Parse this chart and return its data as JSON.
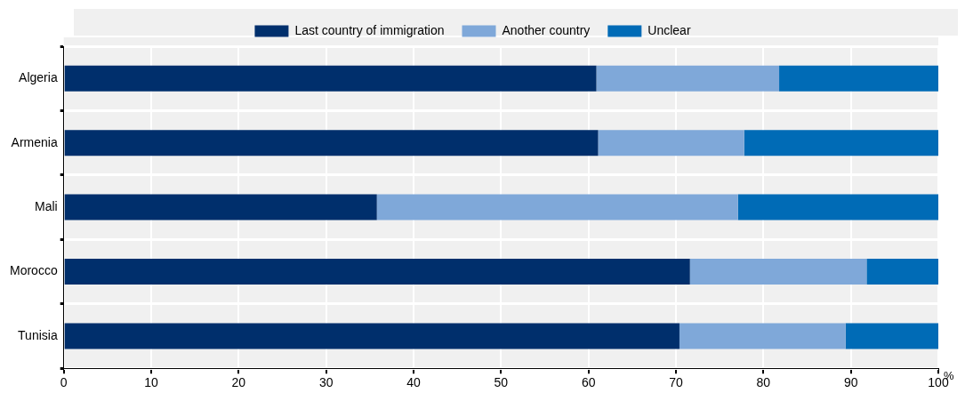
{
  "chart_data": {
    "type": "bar",
    "orientation": "horizontal",
    "stacked": true,
    "categories": [
      "Algeria",
      "Armenia",
      "Mali",
      "Morocco",
      "Tunisia"
    ],
    "series": [
      {
        "name": "Last country of immigration",
        "color": "#002f6c",
        "values": [
          60.9,
          61.1,
          35.8,
          71.6,
          70.4
        ]
      },
      {
        "name": "Another country",
        "color": "#7fa8d9",
        "values": [
          20.9,
          16.7,
          41.3,
          20.2,
          19.0
        ]
      },
      {
        "name": "Unclear",
        "color": "#006bb6",
        "values": [
          18.2,
          22.2,
          22.9,
          8.2,
          10.6
        ]
      }
    ],
    "xlabel": "%",
    "xlim": [
      0,
      100
    ],
    "xticks": [
      0,
      10,
      20,
      30,
      40,
      50,
      60,
      70,
      80,
      90,
      100
    ],
    "grid": true,
    "legend": "top"
  }
}
